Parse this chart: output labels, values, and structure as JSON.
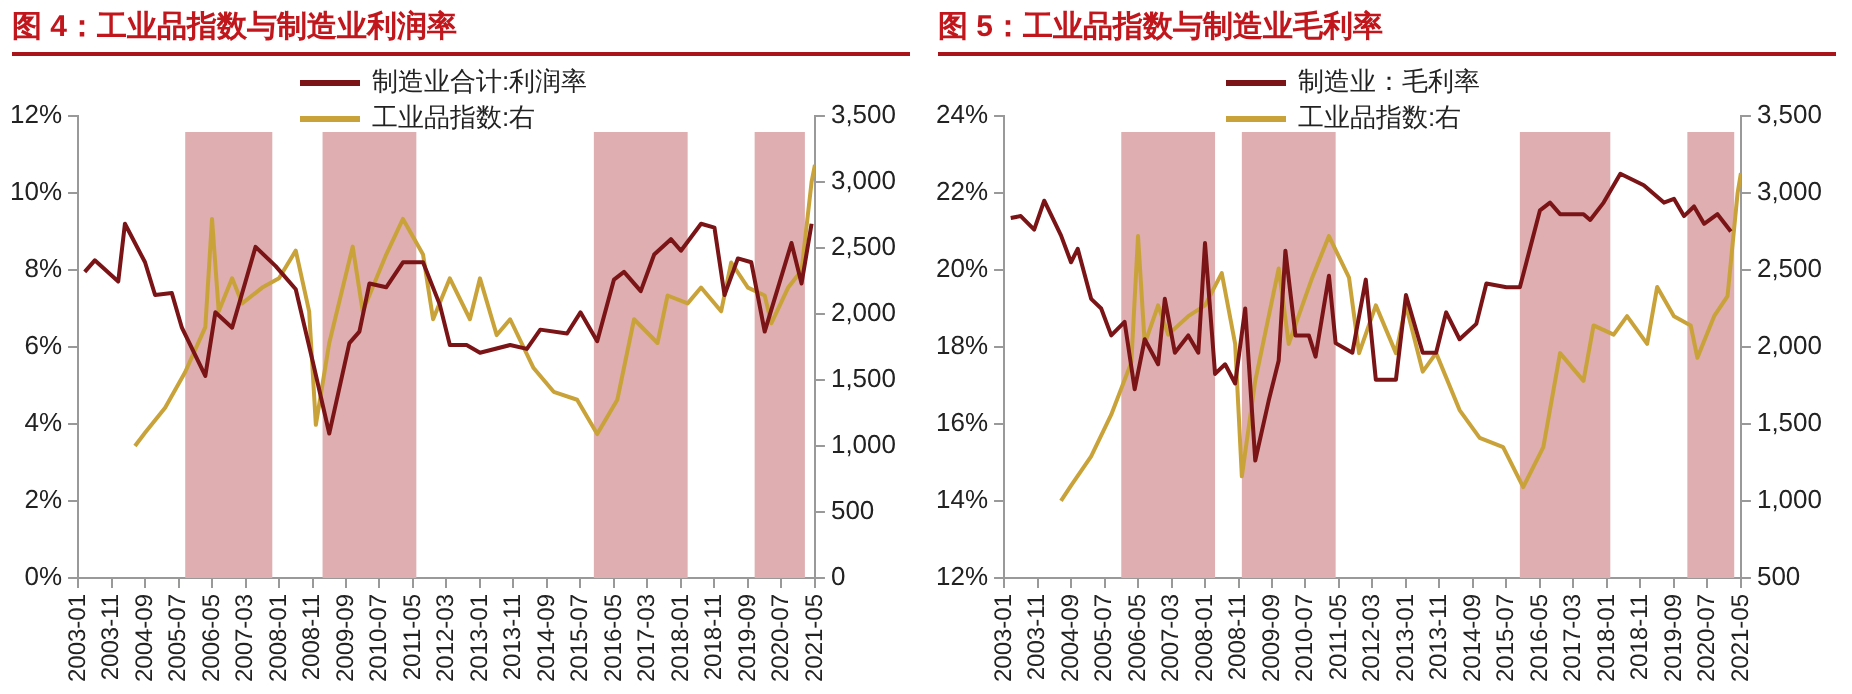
{
  "chart_data": [
    {
      "type": "line",
      "title": "图 4：工业品指数与制造业利润率",
      "xlim": [
        "2003-01",
        "2021-05"
      ],
      "xticks": [
        "2003-01",
        "2003-11",
        "2004-09",
        "2005-07",
        "2006-05",
        "2007-03",
        "2008-01",
        "2008-11",
        "2009-09",
        "2010-07",
        "2011-05",
        "2012-03",
        "2013-01",
        "2013-11",
        "2014-09",
        "2015-07",
        "2016-05",
        "2017-03",
        "2018-01",
        "2018-11",
        "2019-09",
        "2020-07",
        "2021-05"
      ],
      "ylim": [
        0,
        12
      ],
      "yticks": [
        {
          "value": 0,
          "label": "0%"
        },
        {
          "value": 2,
          "label": "2%"
        },
        {
          "value": 4,
          "label": "4%"
        },
        {
          "value": 6,
          "label": "6%"
        },
        {
          "value": 8,
          "label": "8%"
        },
        {
          "value": 10,
          "label": "10%"
        },
        {
          "value": 12,
          "label": "12%"
        }
      ],
      "y2lim": [
        0,
        3500
      ],
      "y2ticks": [
        0,
        {
          "value": 500,
          "label": "500"
        },
        {
          "value": 1000,
          "label": "1,000"
        },
        {
          "value": 1500,
          "label": "1,500"
        },
        {
          "value": 2000,
          "label": "2,000"
        },
        {
          "value": 2500,
          "label": "2,500"
        },
        {
          "value": 3000,
          "label": "3,000"
        },
        {
          "value": 3500,
          "label": "3,500"
        }
      ],
      "grid": false,
      "legend": "top",
      "marker": "none",
      "line_style": "solid",
      "bands": [
        {
          "axis": "x",
          "from": "2005-09",
          "to": "2007-11",
          "color": "#dfaeb0"
        },
        {
          "axis": "x",
          "from": "2009-02",
          "to": "2011-06",
          "color": "#dfaeb0"
        },
        {
          "axis": "x",
          "from": "2015-11",
          "to": "2018-03",
          "color": "#dfaeb0"
        },
        {
          "axis": "x",
          "from": "2019-11",
          "to": "2021-02",
          "color": "#dfaeb0"
        }
      ],
      "series": [
        {
          "name": "制造业合计:利润率",
          "color": "#7b1416",
          "x": [
            "2003-03",
            "2003-06",
            "2004-01",
            "2004-03",
            "2004-09",
            "2004-12",
            "2005-05",
            "2005-08",
            "2006-03",
            "2006-06",
            "2006-11",
            "2007-06",
            "2007-12",
            "2008-06",
            "2008-11",
            "2009-04",
            "2009-10",
            "2010-01",
            "2010-04",
            "2010-09",
            "2011-02",
            "2011-08",
            "2012-01",
            "2012-04",
            "2012-09",
            "2013-01",
            "2013-10",
            "2014-03",
            "2014-07",
            "2015-03",
            "2015-07",
            "2015-12",
            "2016-05",
            "2016-08",
            "2017-01",
            "2017-05",
            "2017-10",
            "2018-01",
            "2018-07",
            "2018-11",
            "2019-02",
            "2019-06",
            "2019-10",
            "2020-02",
            "2020-06",
            "2020-10",
            "2021-01",
            "2021-04"
          ],
          "values": [
            7.95,
            8.25,
            7.7,
            9.2,
            8.2,
            7.35,
            7.4,
            6.5,
            5.25,
            6.9,
            6.5,
            8.6,
            8.1,
            7.5,
            5.65,
            3.75,
            6.1,
            6.4,
            7.65,
            7.55,
            8.2,
            8.2,
            7.1,
            6.05,
            6.05,
            5.85,
            6.05,
            5.95,
            6.45,
            6.35,
            6.9,
            6.15,
            7.75,
            7.95,
            7.45,
            8.4,
            8.8,
            8.5,
            9.2,
            9.1,
            7.35,
            8.3,
            8.2,
            6.4,
            7.55,
            8.7,
            7.65,
            9.2
          ]
        },
        {
          "name": "工业品指数:右",
          "color": "#c9a33a",
          "axis": "y2",
          "x": [
            "2004-06",
            "2004-09",
            "2005-03",
            "2005-09",
            "2006-03",
            "2006-05",
            "2006-07",
            "2006-11",
            "2007-02",
            "2007-08",
            "2008-01",
            "2008-06",
            "2008-10",
            "2008-12",
            "2009-04",
            "2009-11",
            "2010-02",
            "2010-09",
            "2011-02",
            "2011-08",
            "2011-11",
            "2012-04",
            "2012-10",
            "2013-01",
            "2013-06",
            "2013-10",
            "2014-05",
            "2014-11",
            "2015-06",
            "2015-12",
            "2016-06",
            "2016-11",
            "2017-06",
            "2017-09",
            "2018-03",
            "2018-07",
            "2019-01",
            "2019-04",
            "2019-09",
            "2020-02",
            "2020-04",
            "2020-09",
            "2021-01",
            "2021-04",
            "2021-05"
          ],
          "values": [
            1000,
            1100,
            1290,
            1560,
            1900,
            2720,
            2020,
            2270,
            2080,
            2200,
            2270,
            2480,
            2020,
            1160,
            1780,
            2510,
            2020,
            2450,
            2720,
            2450,
            1960,
            2270,
            1960,
            2270,
            1840,
            1960,
            1590,
            1410,
            1350,
            1090,
            1350,
            1960,
            1780,
            2140,
            2080,
            2200,
            2020,
            2390,
            2200,
            2140,
            1930,
            2200,
            2330,
            3000,
            3130
          ]
        }
      ]
    },
    {
      "type": "line",
      "title": "图 5：工业品指数与制造业毛利率",
      "xlim": [
        "2003-01",
        "2021-05"
      ],
      "xticks": [
        "2003-01",
        "2003-11",
        "2004-09",
        "2005-07",
        "2006-05",
        "2007-03",
        "2008-01",
        "2008-11",
        "2009-09",
        "2010-07",
        "2011-05",
        "2012-03",
        "2013-01",
        "2013-11",
        "2014-09",
        "2015-07",
        "2016-05",
        "2017-03",
        "2018-01",
        "2018-11",
        "2019-09",
        "2020-07",
        "2021-05"
      ],
      "ylim": [
        12,
        24
      ],
      "yticks": [
        {
          "value": 12,
          "label": "12%"
        },
        {
          "value": 14,
          "label": "14%"
        },
        {
          "value": 16,
          "label": "16%"
        },
        {
          "value": 18,
          "label": "18%"
        },
        {
          "value": 20,
          "label": "20%"
        },
        {
          "value": 22,
          "label": "22%"
        },
        {
          "value": 24,
          "label": "24%"
        }
      ],
      "y2lim": [
        500,
        3500
      ],
      "y2ticks": [
        500,
        {
          "value": 1000,
          "label": "1,000"
        },
        {
          "value": 1500,
          "label": "1,500"
        },
        {
          "value": 2000,
          "label": "2,000"
        },
        {
          "value": 2500,
          "label": "2,500"
        },
        {
          "value": 3000,
          "label": "3,000"
        },
        {
          "value": 3500,
          "label": "3,500"
        }
      ],
      "grid": false,
      "legend": "top",
      "marker": "none",
      "line_style": "solid",
      "bands": [
        {
          "axis": "x",
          "from": "2005-12",
          "to": "2008-04",
          "color": "#dfaeb0"
        },
        {
          "axis": "x",
          "from": "2008-12",
          "to": "2011-04",
          "color": "#dfaeb0"
        },
        {
          "axis": "x",
          "from": "2015-11",
          "to": "2018-02",
          "color": "#dfaeb0"
        },
        {
          "axis": "x",
          "from": "2020-01",
          "to": "2021-03",
          "color": "#dfaeb0"
        }
      ],
      "series": [
        {
          "name": "制造业：毛利率",
          "color": "#7b1416",
          "x": [
            "2003-03",
            "2003-06",
            "2003-10",
            "2004-01",
            "2004-06",
            "2004-09",
            "2004-11",
            "2005-03",
            "2005-06",
            "2005-09",
            "2006-01",
            "2006-04",
            "2006-07",
            "2006-11",
            "2007-01",
            "2007-04",
            "2007-08",
            "2007-11",
            "2008-01",
            "2008-04",
            "2008-07",
            "2008-10",
            "2009-01",
            "2009-04",
            "2009-08",
            "2009-11",
            "2010-01",
            "2010-04",
            "2010-08",
            "2010-10",
            "2011-02",
            "2011-04",
            "2011-09",
            "2012-01",
            "2012-04",
            "2012-10",
            "2013-01",
            "2013-06",
            "2013-10",
            "2014-01",
            "2014-05",
            "2014-10",
            "2015-01",
            "2015-07",
            "2015-11",
            "2016-05",
            "2016-08",
            "2016-11",
            "2017-06",
            "2017-08",
            "2017-12",
            "2018-05",
            "2018-12",
            "2019-06",
            "2019-09",
            "2019-12",
            "2020-03",
            "2020-06",
            "2020-10",
            "2021-02"
          ],
          "values": [
            21.35,
            21.4,
            21.05,
            21.8,
            20.9,
            20.2,
            20.55,
            19.25,
            19.0,
            18.3,
            18.65,
            16.9,
            18.2,
            17.55,
            19.25,
            17.85,
            18.3,
            17.85,
            20.7,
            17.3,
            17.55,
            17.05,
            19.0,
            15.05,
            16.6,
            17.65,
            20.5,
            18.3,
            18.3,
            17.75,
            19.85,
            18.1,
            17.85,
            19.75,
            17.15,
            17.15,
            19.35,
            17.85,
            17.85,
            18.9,
            18.2,
            18.6,
            19.65,
            19.55,
            19.55,
            21.55,
            21.75,
            21.45,
            21.45,
            21.3,
            21.75,
            22.5,
            22.2,
            21.75,
            21.85,
            21.4,
            21.65,
            21.2,
            21.45,
            21.0
          ]
        },
        {
          "name": "工业品指数:右",
          "color": "#c9a33a",
          "axis": "y2",
          "x": [
            "2004-06",
            "2004-09",
            "2005-03",
            "2005-09",
            "2006-03",
            "2006-05",
            "2006-07",
            "2006-11",
            "2007-02",
            "2007-08",
            "2008-01",
            "2008-06",
            "2008-10",
            "2008-12",
            "2009-04",
            "2009-11",
            "2010-02",
            "2010-09",
            "2011-02",
            "2011-08",
            "2011-11",
            "2012-04",
            "2012-10",
            "2013-01",
            "2013-06",
            "2013-10",
            "2014-05",
            "2014-11",
            "2015-06",
            "2015-12",
            "2016-06",
            "2016-11",
            "2017-06",
            "2017-09",
            "2018-03",
            "2018-07",
            "2019-01",
            "2019-04",
            "2019-09",
            "2020-02",
            "2020-04",
            "2020-09",
            "2021-01",
            "2021-04",
            "2021-05"
          ],
          "values": [
            1000,
            1100,
            1290,
            1560,
            1900,
            2720,
            2020,
            2270,
            2080,
            2200,
            2270,
            2480,
            2020,
            1160,
            1780,
            2510,
            2020,
            2450,
            2720,
            2450,
            1960,
            2270,
            1960,
            2270,
            1840,
            1960,
            1590,
            1410,
            1350,
            1090,
            1350,
            1960,
            1780,
            2140,
            2080,
            2200,
            2020,
            2390,
            2200,
            2140,
            1930,
            2200,
            2330,
            3000,
            3130
          ]
        }
      ]
    }
  ]
}
